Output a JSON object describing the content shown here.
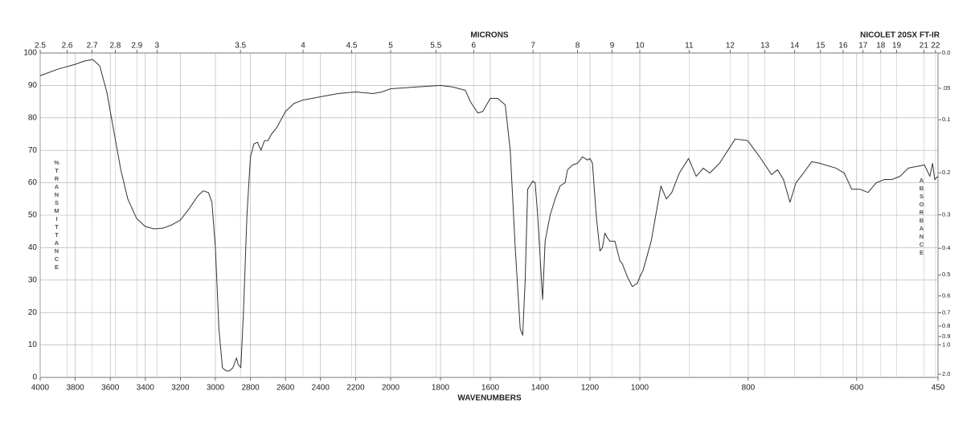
{
  "chart_data": {
    "type": "line",
    "top_axis_label": "MICRONS",
    "x_axis_label": "WAVENUMBERS",
    "instrument": "NICOLET 20SX FT-IR",
    "y_axis_label": "%TRANSMITTANCE",
    "y2_axis_label": "ABSORBANCE",
    "color": "#333333",
    "xlim": [
      4000,
      450
    ],
    "xbreaks": [
      2000,
      1000
    ],
    "xticks": [
      4000,
      3800,
      3600,
      3400,
      3200,
      3000,
      2800,
      2600,
      2400,
      2200,
      2000,
      1800,
      1600,
      1400,
      1200,
      1000,
      800,
      600,
      450
    ],
    "x2ticks": [
      2.5,
      2.6,
      2.7,
      2.8,
      2.9,
      3,
      3.5,
      4,
      4.5,
      5,
      5.5,
      6,
      7,
      8,
      9,
      10,
      11,
      12,
      13,
      14,
      15,
      16,
      17,
      18,
      19,
      21,
      22
    ],
    "ylim": [
      0,
      100
    ],
    "yticks": [
      0,
      10,
      20,
      30,
      40,
      50,
      60,
      70,
      80,
      90,
      100
    ],
    "y2ticks": [
      {
        "value": 0,
        "label": "0.0"
      },
      {
        "value": 0.05,
        "label": ".05"
      },
      0.1,
      0.2,
      0.3,
      0.4,
      0.5,
      0.6,
      0.7,
      0.8,
      0.9,
      {
        "value": 1,
        "label": "1.0"
      },
      {
        "value": 2,
        "label": "2.0"
      }
    ],
    "grid": true,
    "x": [
      4000,
      3900,
      3800,
      3750,
      3700,
      3660,
      3620,
      3580,
      3540,
      3500,
      3450,
      3400,
      3350,
      3300,
      3250,
      3200,
      3150,
      3100,
      3070,
      3040,
      3020,
      3000,
      2980,
      2960,
      2940,
      2920,
      2900,
      2880,
      2870,
      2855,
      2840,
      2820,
      2800,
      2780,
      2760,
      2740,
      2720,
      2700,
      2680,
      2650,
      2600,
      2550,
      2500,
      2400,
      2300,
      2200,
      2100,
      2050,
      2000,
      1900,
      1800,
      1750,
      1700,
      1680,
      1650,
      1630,
      1600,
      1570,
      1540,
      1520,
      1500,
      1480,
      1470,
      1460,
      1450,
      1430,
      1420,
      1410,
      1390,
      1380,
      1360,
      1340,
      1320,
      1300,
      1290,
      1270,
      1250,
      1230,
      1210,
      1200,
      1190,
      1175,
      1160,
      1150,
      1140,
      1130,
      1120,
      1100,
      1090,
      1080,
      1070,
      1050,
      1030,
      1010,
      1000,
      994,
      979,
      961,
      951,
      941,
      927,
      910,
      896,
      883,
      871,
      853,
      824,
      801,
      779,
      757,
      746,
      735,
      723,
      712,
      698,
      683,
      668,
      638,
      623,
      609,
      594,
      579,
      564,
      549,
      535,
      520,
      505,
      490,
      475,
      465,
      460,
      456,
      450
    ],
    "values": [
      93,
      95,
      96.5,
      97.5,
      98,
      96,
      88,
      76,
      64,
      55,
      49,
      46.5,
      45.8,
      46,
      47,
      48.5,
      52,
      56,
      57.5,
      57,
      54,
      40,
      15,
      3,
      2,
      2,
      3,
      6,
      4,
      3,
      20,
      50,
      68,
      72,
      72.5,
      70,
      73,
      73,
      75,
      77,
      82,
      84.5,
      85.5,
      86.5,
      87.5,
      88,
      87.5,
      88,
      89,
      89.5,
      90,
      89.5,
      88.5,
      85,
      81.5,
      82,
      86,
      86,
      84,
      70,
      40,
      15,
      13,
      30,
      58,
      60.5,
      60,
      50,
      24,
      42,
      50,
      55,
      59,
      60,
      64,
      65.5,
      66,
      68,
      67,
      67.5,
      66,
      50,
      39,
      40,
      44.5,
      43,
      42,
      42,
      39,
      36,
      35,
      31,
      28,
      29,
      31,
      33,
      42,
      59,
      55,
      57,
      63,
      67.5,
      62,
      64.5,
      63,
      66,
      73.5,
      73,
      68,
      62.5,
      64,
      61,
      54,
      60,
      63,
      66.5,
      66,
      64.5,
      63,
      58,
      58,
      57,
      60,
      61,
      61,
      62,
      64.5,
      65,
      65.5,
      62,
      66,
      61,
      62
    ]
  }
}
